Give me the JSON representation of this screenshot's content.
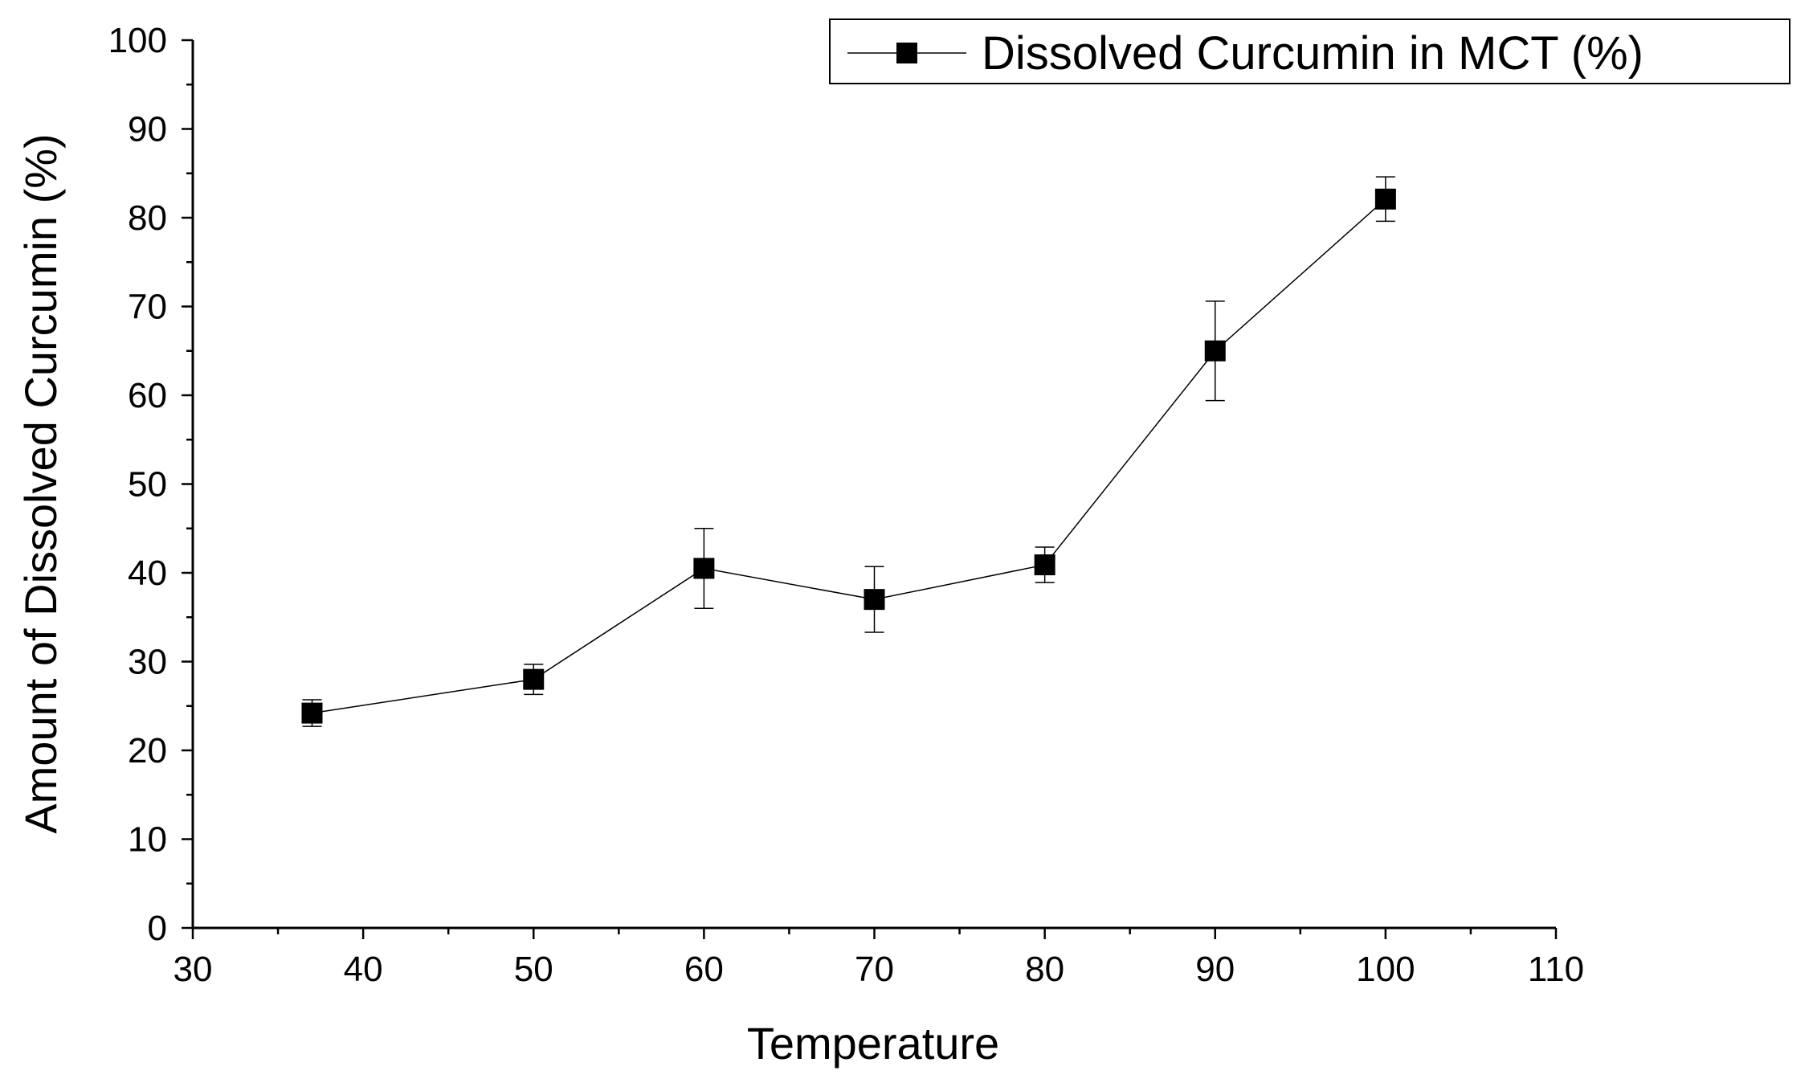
{
  "chart_data": {
    "type": "line",
    "xlabel": "Temperature",
    "ylabel": "Amount of Dissolved Curcumin (%)",
    "xlim": [
      30,
      110
    ],
    "ylim": [
      0,
      100
    ],
    "x_ticks": [
      30,
      40,
      50,
      60,
      70,
      80,
      90,
      100,
      110
    ],
    "y_ticks": [
      0,
      10,
      20,
      30,
      40,
      50,
      60,
      70,
      80,
      90,
      100
    ],
    "x_minor_step": 5,
    "y_minor_step": 5,
    "grid": false,
    "legend": {
      "placement": "top-right",
      "marker": "square"
    },
    "series": [
      {
        "name": "Dissolved Curcumin in MCT (%)",
        "color": "#000000",
        "marker": "square",
        "x": [
          37,
          50,
          60,
          70,
          80,
          90,
          100
        ],
        "y": [
          24.2,
          28.0,
          40.5,
          37.0,
          40.9,
          65.0,
          82.1
        ],
        "error": [
          1.5,
          1.7,
          4.5,
          3.7,
          2.0,
          5.6,
          2.5
        ]
      }
    ]
  }
}
